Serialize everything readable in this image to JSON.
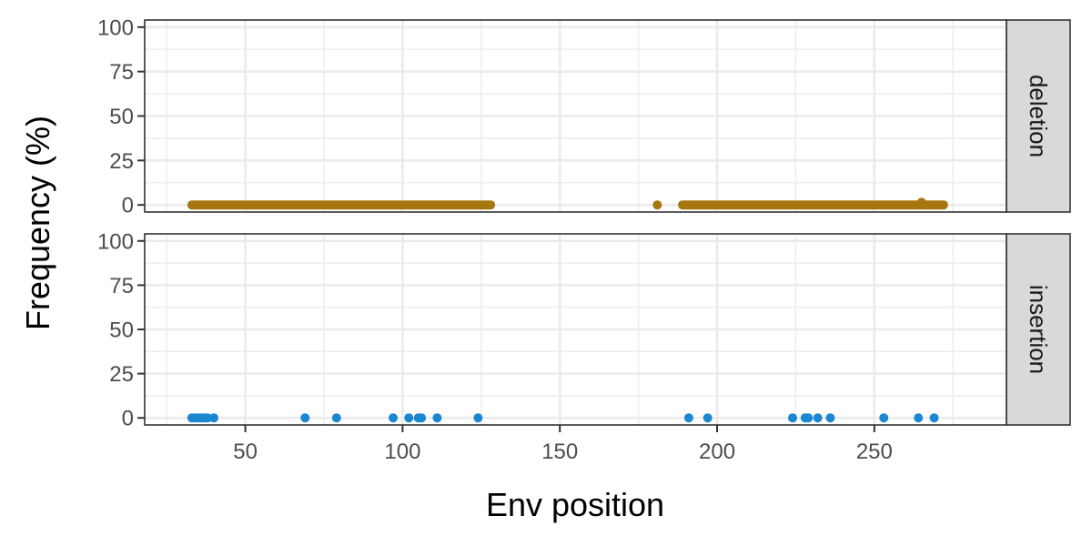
{
  "chart_data": {
    "type": "scatter",
    "xlabel": "Env position",
    "ylabel": "Frequency (%)",
    "xlim": [
      18,
      292
    ],
    "ylim": [
      -4,
      104
    ],
    "x_ticks": [
      50,
      100,
      150,
      200,
      250
    ],
    "x_tick_labels": [
      "50",
      "100",
      "150",
      "200",
      "250"
    ],
    "y_ticks": [
      0,
      25,
      50,
      75,
      100
    ],
    "y_tick_labels": [
      "0",
      "25",
      "50",
      "75",
      "100"
    ],
    "grid": true,
    "panels": [
      {
        "label": "deletion",
        "color": "#A6760F",
        "points": {
          "x_ranges": [
            [
              33,
              128
            ],
            [
              189,
              272
            ]
          ],
          "x": [
            181,
            265
          ],
          "y": [
            0,
            1.5
          ]
        }
      },
      {
        "label": "insertion",
        "color": "#1B87D1",
        "points": {
          "x": [
            33,
            34,
            35,
            36,
            37,
            38,
            40,
            69,
            79,
            97,
            102,
            105,
            106,
            111,
            124,
            191,
            197,
            224,
            228,
            229,
            232,
            236,
            253,
            264,
            269
          ],
          "y": [
            0,
            0,
            0,
            0,
            0,
            0,
            0,
            0,
            0,
            0,
            0,
            0,
            0,
            0,
            0,
            0,
            0,
            0,
            0,
            0,
            0,
            0,
            0,
            0,
            0
          ]
        }
      }
    ]
  }
}
